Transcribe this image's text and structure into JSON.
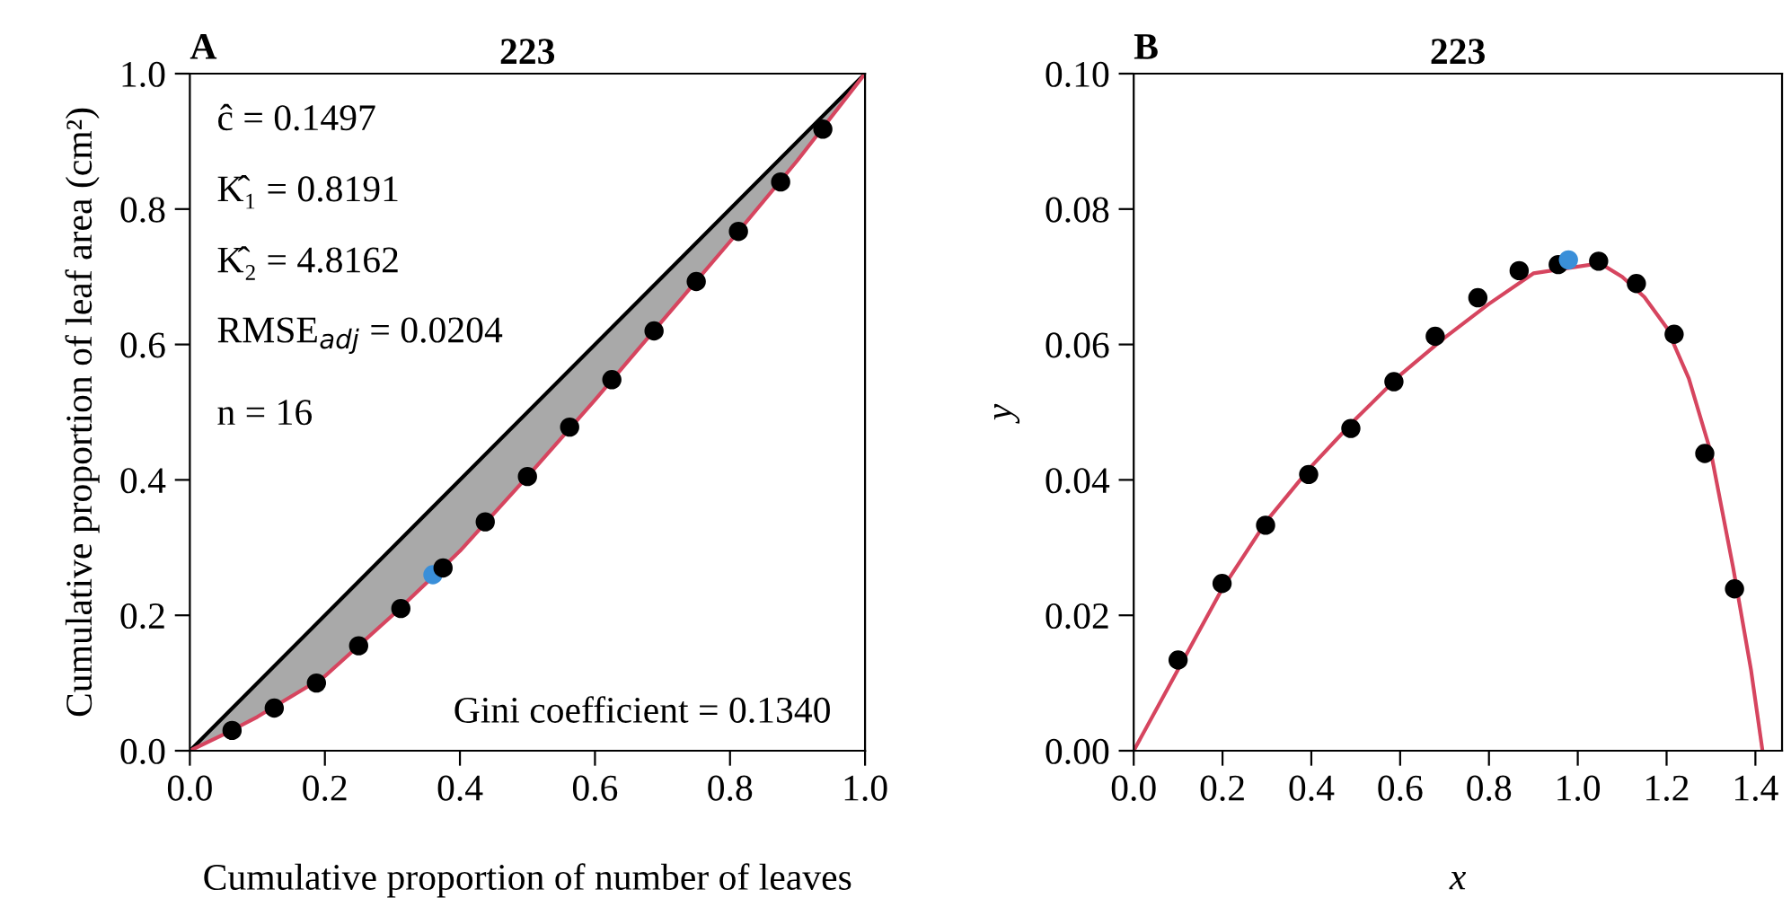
{
  "chart_data": [
    {
      "type": "scatter",
      "title": "223",
      "xlabel": "Cumulative proportion of number of leaves",
      "ylabel": "Cumulative proportion of leaf area (cm²)",
      "annotations": [
        "A",
        "ĉ = 0.1497",
        "K̂₁ = 0.8191",
        "K̂₂ = 4.8162",
        "RMSE$_{adj}$ = 0.0204",
        "n = 16",
        "Gini coefficient = 0.1340"
      ],
      "xlim": [
        0,
        1
      ],
      "ylim": [
        0,
        1
      ],
      "xticks": [
        {
          "value": 0,
          "label": "0.0"
        },
        {
          "value": 0.2,
          "label": "0.2"
        },
        {
          "value": 0.4,
          "label": "0.4"
        },
        {
          "value": 0.6,
          "label": "0.6"
        },
        {
          "value": 0.8,
          "label": "0.8"
        },
        {
          "value": 1,
          "label": "1.0"
        }
      ],
      "yticks": [
        {
          "value": 0,
          "label": "0.0"
        },
        {
          "value": 0.2,
          "label": "0.2"
        },
        {
          "value": 0.4,
          "label": "0.4"
        },
        {
          "value": 0.6,
          "label": "0.6"
        },
        {
          "value": 0.8,
          "label": "0.8"
        },
        {
          "value": 1,
          "label": "1.0"
        }
      ],
      "grid": false,
      "legend": false,
      "series": [
        {
          "type": "line",
          "color": "#000000",
          "x": [
            0,
            1
          ],
          "values": [
            0,
            1
          ]
        },
        {
          "type": "line",
          "color": "#d6455f",
          "x": [
            0,
            0.05,
            0.1,
            0.2,
            0.3,
            0.4,
            0.5,
            0.6,
            0.7,
            0.8,
            0.9,
            1.0
          ],
          "values": [
            0,
            0.024,
            0.05,
            0.11,
            0.2,
            0.295,
            0.405,
            0.518,
            0.635,
            0.752,
            0.872,
            1.0
          ],
          "lower": [
            0,
            0.024,
            0.05,
            0.11,
            0.2,
            0.295,
            0.405,
            0.518,
            0.635,
            0.752,
            0.872,
            1.0
          ],
          "upper": [
            0,
            0.05,
            0.1,
            0.2,
            0.3,
            0.4,
            0.5,
            0.6,
            0.7,
            0.8,
            0.9,
            1.0
          ]
        },
        {
          "color": "#3a8fd9",
          "x": [
            0.36
          ],
          "values": [
            0.26
          ]
        },
        {
          "color": "#000000",
          "x": [
            0.0625,
            0.125,
            0.1875,
            0.25,
            0.3125,
            0.375,
            0.4375,
            0.5,
            0.5625,
            0.625,
            0.6875,
            0.75,
            0.8125,
            0.875,
            0.9375
          ],
          "values": [
            0.03,
            0.063,
            0.1,
            0.155,
            0.21,
            0.27,
            0.338,
            0.405,
            0.478,
            0.548,
            0.62,
            0.693,
            0.767,
            0.84,
            0.918
          ]
        }
      ]
    },
    {
      "type": "scatter",
      "title": "223",
      "xlabel": "x",
      "ylabel": "y",
      "annotations": [
        "B"
      ],
      "xlim": [
        0,
        1.46
      ],
      "ylim": [
        0,
        0.1
      ],
      "xticks": [
        {
          "value": 0,
          "label": "0.0"
        },
        {
          "value": 0.2,
          "label": "0.2"
        },
        {
          "value": 0.4,
          "label": "0.4"
        },
        {
          "value": 0.6,
          "label": "0.6"
        },
        {
          "value": 0.8,
          "label": "0.8"
        },
        {
          "value": 1.0,
          "label": "1.0"
        },
        {
          "value": 1.2,
          "label": "1.2"
        },
        {
          "value": 1.4,
          "label": "1.4"
        }
      ],
      "yticks": [
        {
          "value": 0,
          "label": "0.00"
        },
        {
          "value": 0.02,
          "label": "0.02"
        },
        {
          "value": 0.04,
          "label": "0.04"
        },
        {
          "value": 0.06,
          "label": "0.06"
        },
        {
          "value": 0.08,
          "label": "0.08"
        },
        {
          "value": 0.1,
          "label": "0.10"
        }
      ],
      "grid": false,
      "legend": false,
      "series": [
        {
          "type": "line",
          "color": "#d6455f",
          "x": [
            0,
            0.1,
            0.2,
            0.3,
            0.4,
            0.5,
            0.6,
            0.7,
            0.8,
            0.9,
            1.05,
            1.1,
            1.15,
            1.2,
            1.25,
            1.3,
            1.35,
            1.39,
            1.416
          ],
          "values": [
            0,
            0.012,
            0.024,
            0.034,
            0.042,
            0.049,
            0.0555,
            0.061,
            0.066,
            0.0705,
            0.072,
            0.07,
            0.067,
            0.0625,
            0.055,
            0.044,
            0.027,
            0.012,
            0
          ]
        },
        {
          "color": "#000000",
          "x": [
            0.1,
            0.199,
            0.297,
            0.394,
            0.489,
            0.586,
            0.679,
            0.775,
            0.868,
            0.956,
            1.047,
            1.132,
            1.217,
            1.286,
            1.353
          ],
          "values": [
            0.0134,
            0.0247,
            0.0333,
            0.0408,
            0.0476,
            0.0545,
            0.0612,
            0.0669,
            0.0709,
            0.0718,
            0.0723,
            0.069,
            0.0615,
            0.0439,
            0.0239
          ]
        },
        {
          "color": "#3a8fd9",
          "x": [
            0.979
          ],
          "values": [
            0.0725
          ]
        }
      ]
    }
  ]
}
